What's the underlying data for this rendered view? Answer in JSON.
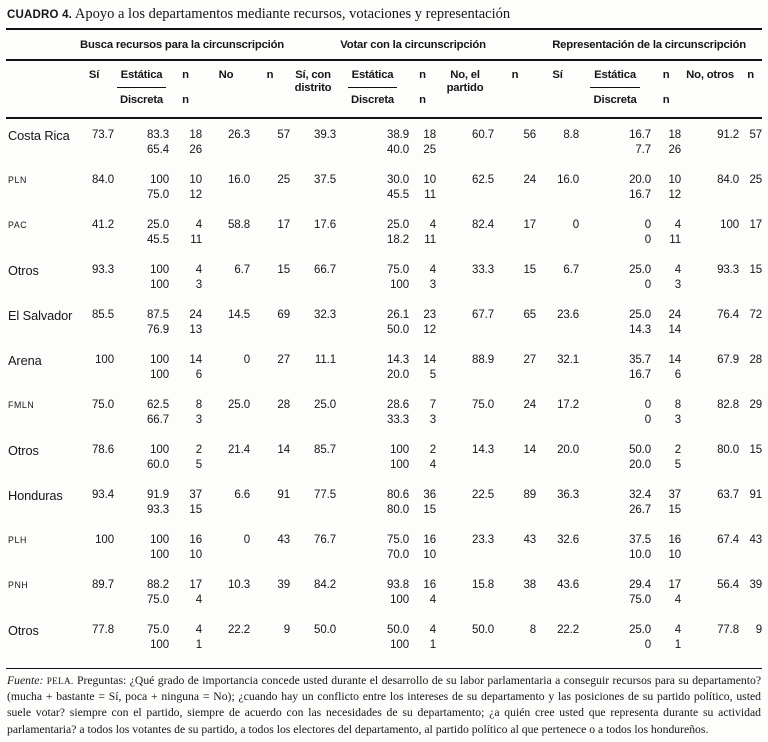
{
  "title": {
    "label": "CUADRO 4.",
    "text": "Apoyo a los departamentos mediante recursos, votaciones y representación"
  },
  "table": {
    "groups": [
      "Busca recursos para la circunscripción",
      "Votar con la circunscripción",
      "Representación de la circunscripción"
    ],
    "columns": {
      "si": "Sí",
      "estatica": "Estática",
      "discreta": "Discreta",
      "n": "n",
      "no": "No",
      "si_con_distrito": "Sí, con distrito",
      "no_el_partido": "No, el partido",
      "no_otros": "No, otros"
    },
    "rows": [
      {
        "label": "Costa Rica",
        "acronym": false,
        "line1": [
          "73.7",
          "83.3",
          "18",
          "26.3",
          "57",
          "39.3",
          "38.9",
          "18",
          "60.7",
          "56",
          "8.8",
          "16.7",
          "18",
          "91.2",
          "57"
        ],
        "line2": [
          "65.4",
          "26",
          "40.0",
          "25",
          "7.7",
          "26"
        ]
      },
      {
        "label": "PLN",
        "acronym": true,
        "line1": [
          "84.0",
          "100",
          "10",
          "16.0",
          "25",
          "37.5",
          "30.0",
          "10",
          "62.5",
          "24",
          "16.0",
          "20.0",
          "10",
          "84.0",
          "25"
        ],
        "line2": [
          "75.0",
          "12",
          "45.5",
          "11",
          "16.7",
          "12"
        ]
      },
      {
        "label": "PAC",
        "acronym": true,
        "line1": [
          "41.2",
          "25.0",
          "4",
          "58.8",
          "17",
          "17.6",
          "25.0",
          "4",
          "82.4",
          "17",
          "0",
          "0",
          "4",
          "100",
          "17"
        ],
        "line2": [
          "45.5",
          "11",
          "18.2",
          "11",
          "0",
          "11"
        ]
      },
      {
        "label": "Otros",
        "acronym": false,
        "line1": [
          "93.3",
          "100",
          "4",
          "6.7",
          "15",
          "66.7",
          "75.0",
          "4",
          "33.3",
          "15",
          "6.7",
          "25.0",
          "4",
          "93.3",
          "15"
        ],
        "line2": [
          "100",
          "3",
          "100",
          "3",
          "0",
          "3"
        ]
      },
      {
        "label": "El Salvador",
        "acronym": false,
        "line1": [
          "85.5",
          "87.5",
          "24",
          "14.5",
          "69",
          "32.3",
          "26.1",
          "23",
          "67.7",
          "65",
          "23.6",
          "25.0",
          "24",
          "76.4",
          "72"
        ],
        "line2": [
          "76.9",
          "13",
          "50.0",
          "12",
          "14.3",
          "14"
        ]
      },
      {
        "label": "Arena",
        "acronym": false,
        "line1": [
          "100",
          "100",
          "14",
          "0",
          "27",
          "11.1",
          "14.3",
          "14",
          "88.9",
          "27",
          "32.1",
          "35.7",
          "14",
          "67.9",
          "28"
        ],
        "line2": [
          "100",
          "6",
          "20.0",
          "5",
          "16.7",
          "6"
        ]
      },
      {
        "label": "FMLN",
        "acronym": true,
        "line1": [
          "75.0",
          "62.5",
          "8",
          "25.0",
          "28",
          "25.0",
          "28.6",
          "7",
          "75.0",
          "24",
          "17.2",
          "0",
          "8",
          "82.8",
          "29"
        ],
        "line2": [
          "66.7",
          "3",
          "33.3",
          "3",
          "0",
          "3"
        ]
      },
      {
        "label": "Otros",
        "acronym": false,
        "line1": [
          "78.6",
          "100",
          "2",
          "21.4",
          "14",
          "85.7",
          "100",
          "2",
          "14.3",
          "14",
          "20.0",
          "50.0",
          "2",
          "80.0",
          "15"
        ],
        "line2": [
          "60.0",
          "5",
          "100",
          "4",
          "20.0",
          "5"
        ]
      },
      {
        "label": "Honduras",
        "acronym": false,
        "line1": [
          "93.4",
          "91.9",
          "37",
          "6.6",
          "91",
          "77.5",
          "80.6",
          "36",
          "22.5",
          "89",
          "36.3",
          "32.4",
          "37",
          "63.7",
          "91"
        ],
        "line2": [
          "93.3",
          "15",
          "80.0",
          "15",
          "26.7",
          "15"
        ]
      },
      {
        "label": "PLH",
        "acronym": true,
        "line1": [
          "100",
          "100",
          "16",
          "0",
          "43",
          "76.7",
          "75.0",
          "16",
          "23.3",
          "43",
          "32.6",
          "37.5",
          "16",
          "67.4",
          "43"
        ],
        "line2": [
          "100",
          "10",
          "70.0",
          "10",
          "10.0",
          "10"
        ]
      },
      {
        "label": "PNH",
        "acronym": true,
        "line1": [
          "89.7",
          "88.2",
          "17",
          "10.3",
          "39",
          "84.2",
          "93.8",
          "16",
          "15.8",
          "38",
          "43.6",
          "29.4",
          "17",
          "56.4",
          "39"
        ],
        "line2": [
          "75.0",
          "4",
          "100",
          "4",
          "75.0",
          "4"
        ]
      },
      {
        "label": "Otros",
        "acronym": false,
        "line1": [
          "77.8",
          "75.0",
          "4",
          "22.2",
          "9",
          "50.0",
          "50.0",
          "4",
          "50.0",
          "8",
          "22.2",
          "25.0",
          "4",
          "77.8",
          "9"
        ],
        "line2": [
          "100",
          "1",
          "100",
          "1",
          "0",
          "1"
        ]
      }
    ]
  },
  "footnote": {
    "source_label": "Fuente:",
    "source": "PELA.",
    "text": "Preguntas: ¿Qué grado de importancia concede usted durante el desarrollo de su labor parlamentaria a conseguir recursos para su departamento? (mucha + bastante = Sí, poca + ninguna = No); ¿cuando hay un conflicto entre los intereses de su departamento y las posiciones de su partido político, usted suele votar? siempre con el partido, siempre de acuerdo con las necesidades de su departamento; ¿a quién cree usted que representa durante su actividad parlamentaria? a todos los votantes de su partido, a todos los electores del departamento, al partido político al que pertenece o a todos los hondureños."
  }
}
